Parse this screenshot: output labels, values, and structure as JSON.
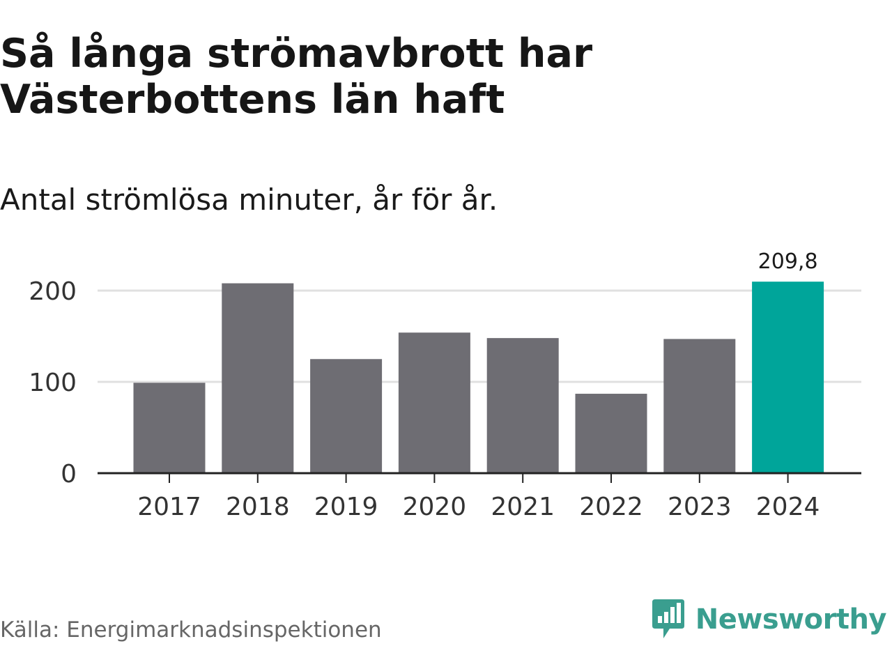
{
  "title": "Så långa strömavbrott har Västerbottens län haft",
  "subtitle": "Antal strömlösa minuter, år för år.",
  "source": "Källa: Energimarknadsinspektionen",
  "brand": {
    "name": "Newsworthy",
    "icon": "newsworthy-logo-icon",
    "color": "#3a9e8f"
  },
  "colors": {
    "bar": "#6e6d73",
    "highlight": "#00a59a",
    "grid": "#e0e0e0",
    "axis": "#222222"
  },
  "chart_data": {
    "type": "bar",
    "categories": [
      "2017",
      "2018",
      "2019",
      "2020",
      "2021",
      "2022",
      "2023",
      "2024"
    ],
    "values": [
      99,
      208,
      125,
      154,
      148,
      87,
      147,
      209.8
    ],
    "highlight_index": 7,
    "data_labels": [
      {
        "index": 7,
        "text": "209,8"
      }
    ],
    "y_ticks": [
      0,
      100,
      200
    ],
    "y_tick_labels": [
      "0",
      "100",
      "200"
    ],
    "ylim": [
      0,
      200
    ],
    "xlabel": "",
    "ylabel": "",
    "grid": true
  }
}
